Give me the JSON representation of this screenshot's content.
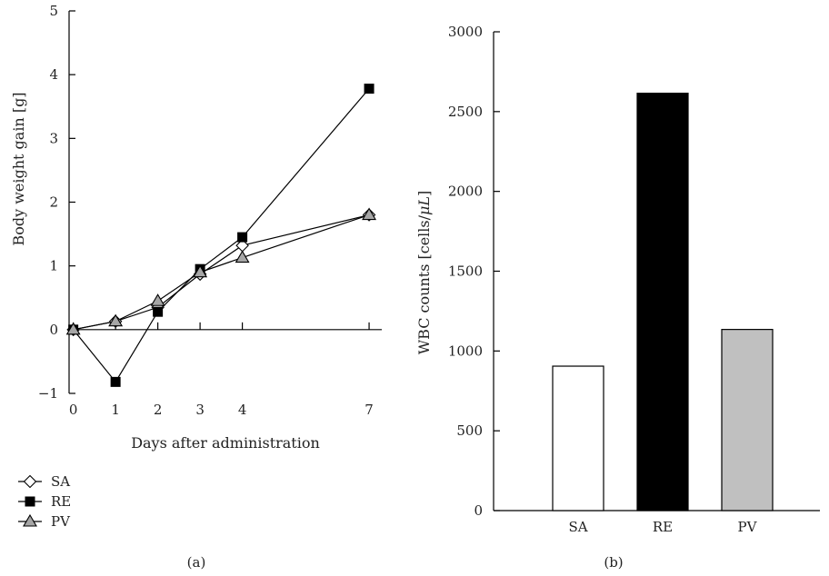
{
  "chart_data": [
    {
      "type": "line",
      "panel_label": "(a)",
      "xlabel": "Days after administration",
      "ylabel": "Body weight gain [g]",
      "x": [
        0,
        1,
        2,
        3,
        4,
        7
      ],
      "xlim": [
        -0.1,
        7.3
      ],
      "ylim": [
        -1,
        5
      ],
      "xticks": [
        0,
        1,
        2,
        3,
        4,
        7
      ],
      "yticks": [
        -1,
        0,
        1,
        2,
        3,
        4,
        5
      ],
      "legend_position": "bottom-left",
      "series": [
        {
          "name": "SA",
          "marker": "diamond",
          "fill": "#ffffff",
          "values": [
            0,
            0.13,
            0.35,
            0.87,
            1.32,
            1.8
          ]
        },
        {
          "name": "RE",
          "marker": "square",
          "fill": "#000000",
          "values": [
            0,
            -0.82,
            0.28,
            0.95,
            1.45,
            3.78
          ]
        },
        {
          "name": "PV",
          "marker": "triangle",
          "fill": "#a6a6a6",
          "values": [
            0,
            0.13,
            0.45,
            0.9,
            1.13,
            1.8
          ]
        }
      ]
    },
    {
      "type": "bar",
      "panel_label": "(b)",
      "ylabel_main": "WBC counts [cells/",
      "ylabel_unit": "μL",
      "ylabel_close": "]",
      "categories": [
        "SA",
        "RE",
        "PV"
      ],
      "values": [
        905,
        2615,
        1135
      ],
      "colors": [
        "#ffffff",
        "#000000",
        "#c0c0c0"
      ],
      "ylim": [
        0,
        3000
      ],
      "yticks": [
        0,
        500,
        1000,
        1500,
        2000,
        2500,
        3000
      ]
    }
  ]
}
